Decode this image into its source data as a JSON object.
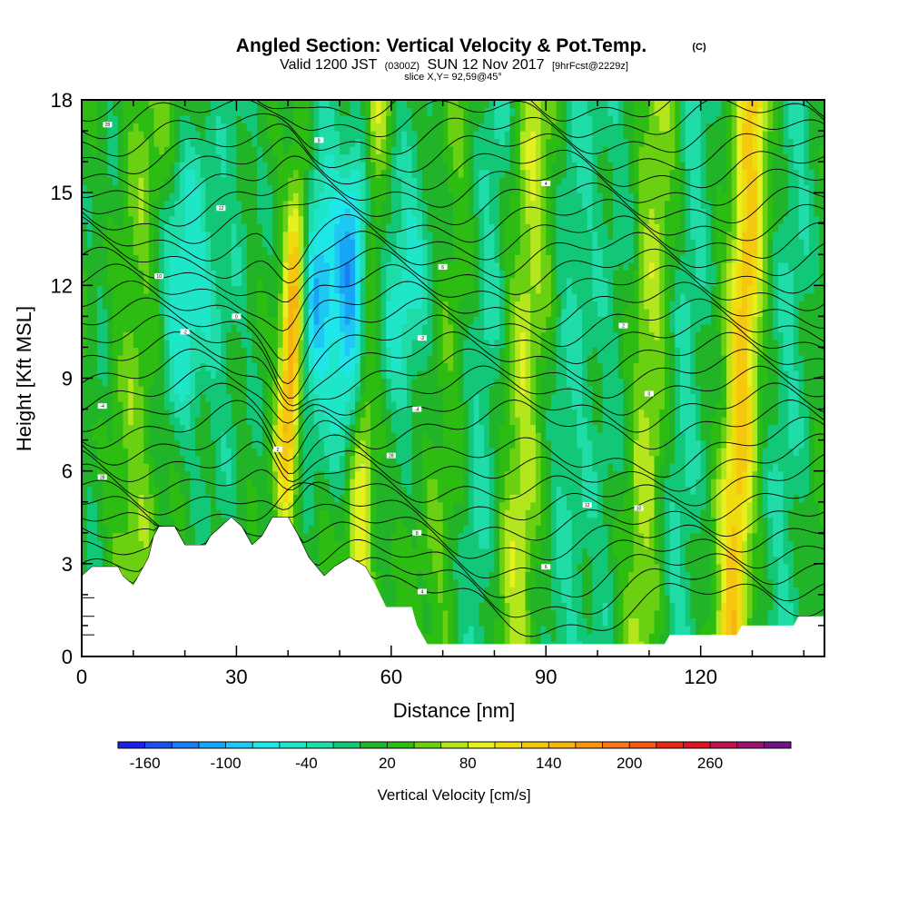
{
  "chart_data": {
    "type": "heatmap",
    "title": "Angled Section: Vertical Velocity & Pot.Temp.",
    "title_mark": "(C)",
    "subtitle_valid": "Valid 1200 JST",
    "subtitle_utc": "(0300Z)",
    "subtitle_date": "SUN 12 Nov 2017",
    "subtitle_fcst": "[9hrFcst@2229z]",
    "subtitle_slice": "slice X,Y= 92,59@45°",
    "xlabel": "Distance [nm]",
    "ylabel": "Height [Kft MSL]",
    "xlim": [
      0,
      144
    ],
    "ylim": [
      0,
      18
    ],
    "xticks": [
      0,
      30,
      60,
      90,
      120
    ],
    "yticks": [
      0,
      3,
      6,
      9,
      12,
      15,
      18
    ],
    "colorbar": {
      "label": "Vertical Velocity [cm/s]",
      "tick_labels": [
        -160,
        -100,
        -40,
        20,
        80,
        140,
        200,
        260
      ],
      "levels": [
        -180,
        -160,
        -140,
        -120,
        -100,
        -80,
        -60,
        -40,
        -20,
        0,
        20,
        40,
        60,
        80,
        100,
        120,
        140,
        160,
        180,
        200,
        220,
        240,
        260,
        280,
        300
      ],
      "colors": [
        "#1f1fe6",
        "#1e50f0",
        "#1e7cf2",
        "#17a6f5",
        "#1fc8f2",
        "#1fe6e8",
        "#1fe6c8",
        "#1fdca8",
        "#12c878",
        "#22b428",
        "#2cbc12",
        "#6cd012",
        "#b4e61e",
        "#e6f01e",
        "#f0dc0f",
        "#f5c80f",
        "#f5b40f",
        "#f59614",
        "#f5781e",
        "#f05a14",
        "#e62814",
        "#dc141e",
        "#be1450",
        "#9b146e",
        "#6e1487"
      ]
    },
    "wind_bands": [
      {
        "x": 4,
        "w": 3,
        "v": -20
      },
      {
        "x": 11,
        "w": 4,
        "v": 35
      },
      {
        "x": 19,
        "w": 4,
        "v": -85
      },
      {
        "x": 28,
        "w": 3,
        "v": -25
      },
      {
        "x": 35,
        "w": 2.5,
        "v": -10
      },
      {
        "x": 40.5,
        "w": 1.6,
        "v": 170
      },
      {
        "x": 45,
        "w": 3,
        "v": -110
      },
      {
        "x": 52,
        "w": 2.5,
        "v": -130
      },
      {
        "x": 55,
        "w": 1.8,
        "v": 75
      },
      {
        "x": 62,
        "w": 4,
        "v": -70
      },
      {
        "x": 72,
        "w": 4,
        "v": 20
      },
      {
        "x": 78,
        "w": 3,
        "v": -50
      },
      {
        "x": 86,
        "w": 3,
        "v": 55
      },
      {
        "x": 95,
        "w": 4,
        "v": -40
      },
      {
        "x": 104,
        "w": 3,
        "v": -25
      },
      {
        "x": 110,
        "w": 3,
        "v": 50
      },
      {
        "x": 117,
        "w": 3,
        "v": -45
      },
      {
        "x": 128,
        "w": 2.2,
        "v": 110
      },
      {
        "x": 137,
        "w": 3,
        "v": -40
      }
    ],
    "terrain": [
      [
        0,
        2.6
      ],
      [
        2,
        2.9
      ],
      [
        7,
        2.9
      ],
      [
        8,
        2.6
      ],
      [
        10,
        2.3
      ],
      [
        11,
        2.6
      ],
      [
        13,
        3.2
      ],
      [
        14,
        3.9
      ],
      [
        15,
        4.2
      ],
      [
        18,
        4.2
      ],
      [
        19,
        3.9
      ],
      [
        20,
        3.6
      ],
      [
        24,
        3.6
      ],
      [
        25,
        3.9
      ],
      [
        27,
        4.2
      ],
      [
        29,
        4.5
      ],
      [
        31,
        4.2
      ],
      [
        33,
        3.6
      ],
      [
        35,
        3.9
      ],
      [
        37,
        4.5
      ],
      [
        40,
        4.5
      ],
      [
        42,
        3.9
      ],
      [
        44,
        3.2
      ],
      [
        47,
        2.6
      ],
      [
        49,
        2.9
      ],
      [
        52,
        3.2
      ],
      [
        55,
        2.9
      ],
      [
        57,
        2.3
      ],
      [
        59,
        1.6
      ],
      [
        64,
        1.6
      ],
      [
        65,
        1.0
      ],
      [
        67,
        0.4
      ],
      [
        113,
        0.4
      ],
      [
        114,
        0.7
      ],
      [
        127,
        0.7
      ],
      [
        128,
        1.0
      ],
      [
        138,
        1.0
      ],
      [
        139,
        1.3
      ],
      [
        144,
        1.3
      ]
    ],
    "theta_contour_labels": [
      "28",
      "12",
      "10",
      "8",
      "6",
      "4",
      "2",
      "0",
      "-2",
      "-4"
    ]
  }
}
